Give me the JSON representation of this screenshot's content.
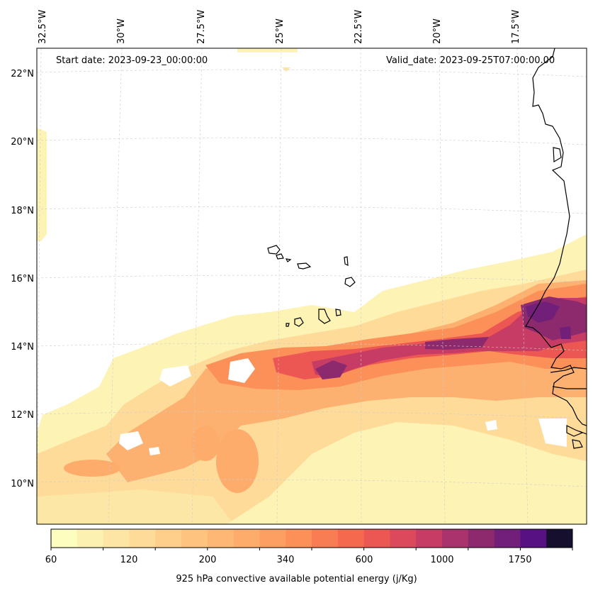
{
  "map": {
    "start_date": "Start date: 2023-09-23_00:00:00",
    "valid_date": "Valid_date: 2023-09-25T07:00:00.00",
    "variable": "925 hPa convective available potential energy",
    "lon_labels": [
      "32.5°W",
      "30°W",
      "27.5°W",
      "25°W",
      "22.5°W",
      "20°W",
      "17.5°W"
    ],
    "lat_labels": [
      "22°N",
      "20°N",
      "18°N",
      "16°N",
      "14°N",
      "12°N",
      "10°N"
    ],
    "lon_range": [
      -32.6,
      -15.4
    ],
    "lat_range": [
      8.9,
      22.8
    ],
    "features": [
      "Cape Verde Islands",
      "Senegal coast",
      "Gambia",
      "Guinea-Bissau coast"
    ]
  },
  "colorbar": {
    "label": "925 hPa convective available potential energy (j/Kg)",
    "tick_labels": [
      "60",
      "120",
      "200",
      "340",
      "600",
      "1000",
      "1750"
    ],
    "colors": [
      "#fcfdbf",
      "#fcf1b1",
      "#fde6a5",
      "#fedb98",
      "#fecf8b",
      "#fec47f",
      "#feb875",
      "#fdac6c",
      "#fd9f63",
      "#fc9059",
      "#f97d53",
      "#f5694f",
      "#ec5753",
      "#dc485c",
      "#c73c65",
      "#ab336d",
      "#8d2a6e",
      "#711f79",
      "#581182",
      "#16102e"
    ]
  }
}
